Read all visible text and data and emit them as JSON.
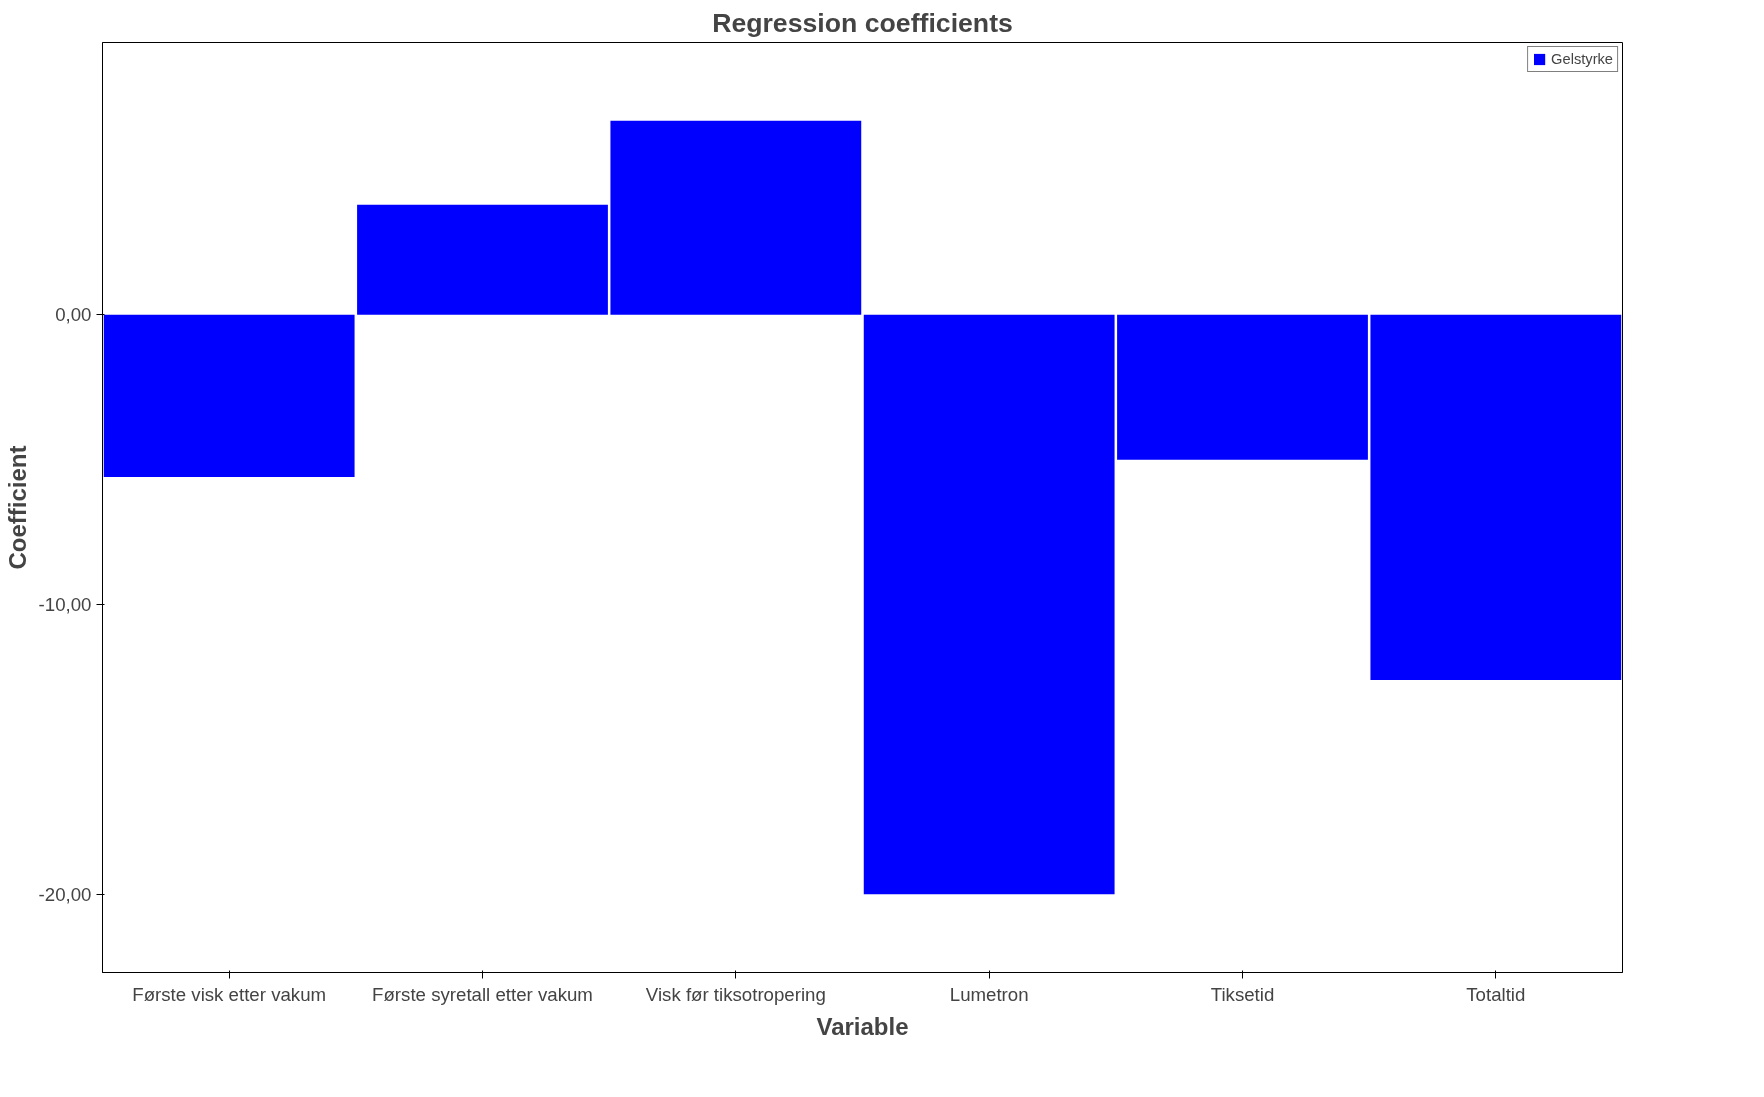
{
  "chart_data": {
    "type": "bar",
    "title": "Regression coefficients",
    "xlabel": "Variable",
    "ylabel": "Coefficient",
    "categories": [
      "Første visk etter vakum",
      "Første syretall etter vakum",
      "Visk før tiksotropering",
      "Lumetron",
      "Tiksetid",
      "Totaltid"
    ],
    "series": [
      {
        "name": "Gelstyrke",
        "color": "#0000ff",
        "values": [
          -5.6,
          3.8,
          6.7,
          -20.0,
          -5.0,
          -12.6
        ]
      }
    ],
    "ylim": [
      -22.7,
      9.4
    ],
    "yticks": [
      {
        "value": 0,
        "label": "0,00"
      },
      {
        "value": -10,
        "label": "-10,00"
      },
      {
        "value": -20,
        "label": "-20,00"
      }
    ],
    "grid": false,
    "legend": "top right"
  }
}
